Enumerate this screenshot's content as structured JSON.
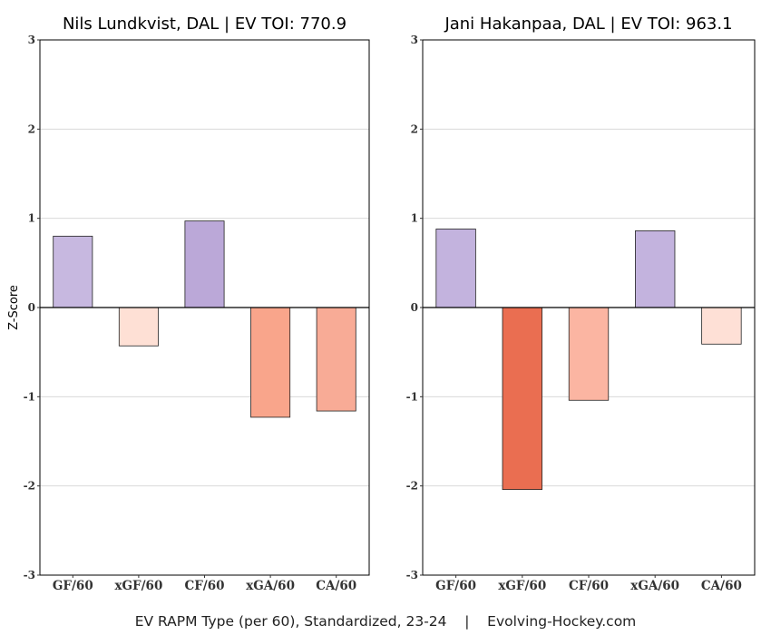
{
  "chart_data": [
    {
      "type": "bar",
      "title": "Nils Lundkvist, DAL  |  EV TOI: 770.9",
      "ylabel": "Z-Score",
      "categories": [
        "GF/60",
        "xGF/60",
        "CF/60",
        "xGA/60",
        "CA/60"
      ],
      "values": [
        0.8,
        -0.43,
        0.97,
        -1.23,
        -1.16
      ],
      "bar_colors": [
        "#c7b8e0",
        "#fee0d5",
        "#bba8d8",
        "#f9a58b",
        "#f8ab96"
      ],
      "ylim": [
        -3,
        3
      ],
      "yticks": [
        -3,
        -2,
        -1,
        0,
        1,
        2,
        3
      ],
      "grid": true,
      "legend": "none"
    },
    {
      "type": "bar",
      "title": "Jani Hakanpaa, DAL  |  EV TOI: 963.1",
      "ylabel": "",
      "categories": [
        "GF/60",
        "xGF/60",
        "CF/60",
        "xGA/60",
        "CA/60"
      ],
      "values": [
        0.88,
        -2.04,
        -1.04,
        0.86,
        -0.41
      ],
      "bar_colors": [
        "#c3b3de",
        "#ea6e51",
        "#fbb5a2",
        "#c3b3de",
        "#fee0d6"
      ],
      "ylim": [
        -3,
        3
      ],
      "yticks": [
        -3,
        -2,
        -1,
        0,
        1,
        2,
        3
      ],
      "grid": true,
      "legend": "none"
    }
  ],
  "caption": "EV RAPM Type (per 60), Standardized, 23-24    |    Evolving-Hockey.com"
}
